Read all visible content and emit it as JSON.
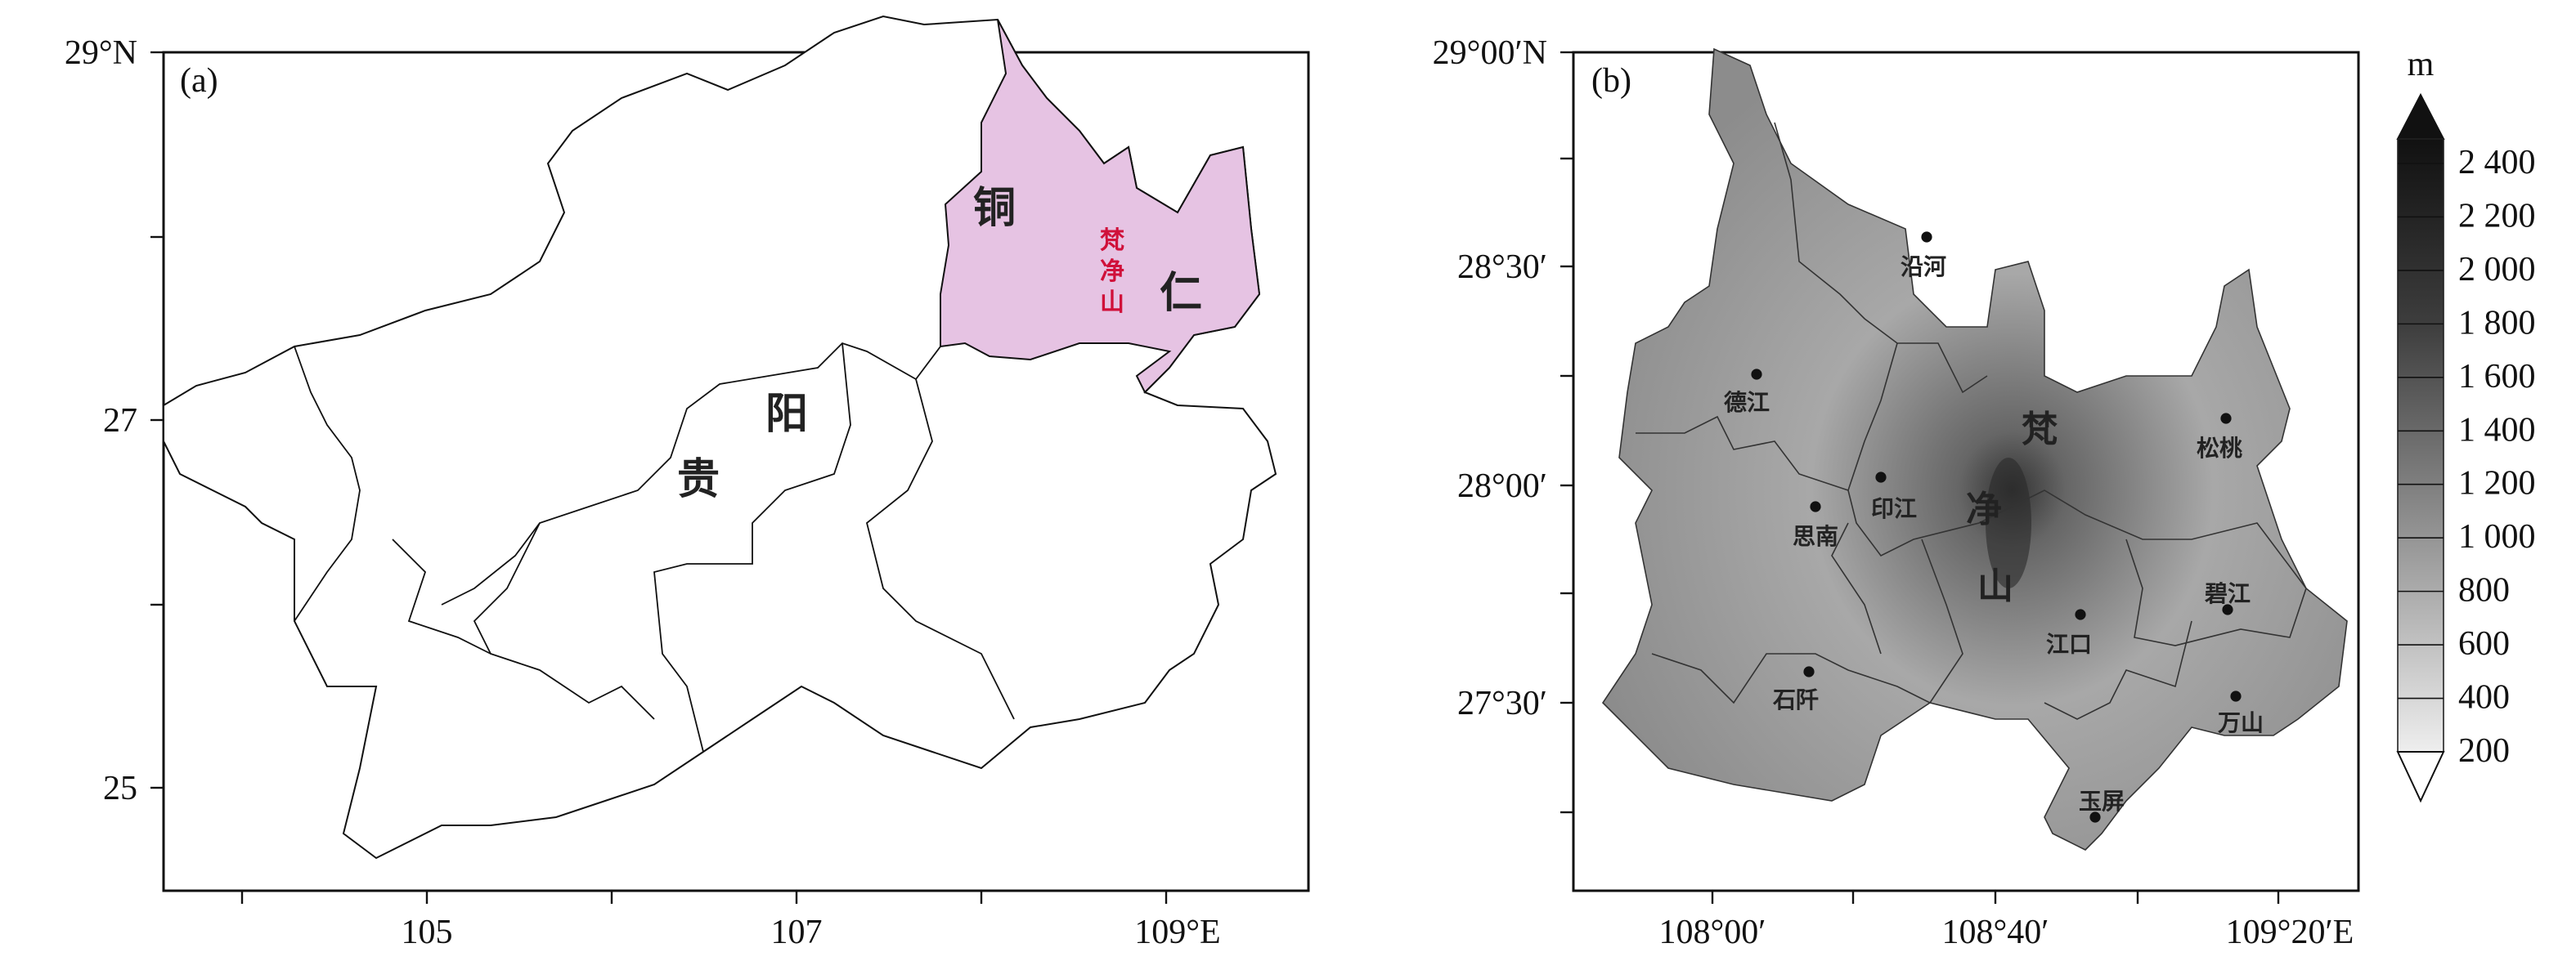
{
  "panel_a": {
    "label": "(a)",
    "y_ticks": [
      "29°N",
      "27",
      "25"
    ],
    "x_ticks": [
      "105",
      "107",
      "109°E"
    ],
    "region_labels": {
      "tong": "铜",
      "ren": "仁",
      "gui": "贵",
      "yang": "阳"
    },
    "mountain_label": [
      "梵",
      "净",
      "山"
    ],
    "highlight_color": "#e6c3e3",
    "mountain_label_color": "#d0103a"
  },
  "panel_b": {
    "label": "(b)",
    "y_ticks": [
      "29°00′N",
      "28°30′",
      "28°00′",
      "27°30′"
    ],
    "x_ticks": [
      "108°00′",
      "108°40′",
      "109°20′E"
    ],
    "towns": [
      "沿河",
      "德江",
      "松桃",
      "印江",
      "思南",
      "江口",
      "碧江",
      "石阡",
      "万山",
      "玉屏"
    ],
    "mountain_label": [
      "梵",
      "净",
      "山"
    ]
  },
  "colorbar": {
    "unit": "m",
    "levels": [
      "2 400",
      "2 200",
      "2 000",
      "1 800",
      "1 600",
      "1 400",
      "1 200",
      "1 000",
      "800",
      "600",
      "400",
      "200"
    ]
  }
}
